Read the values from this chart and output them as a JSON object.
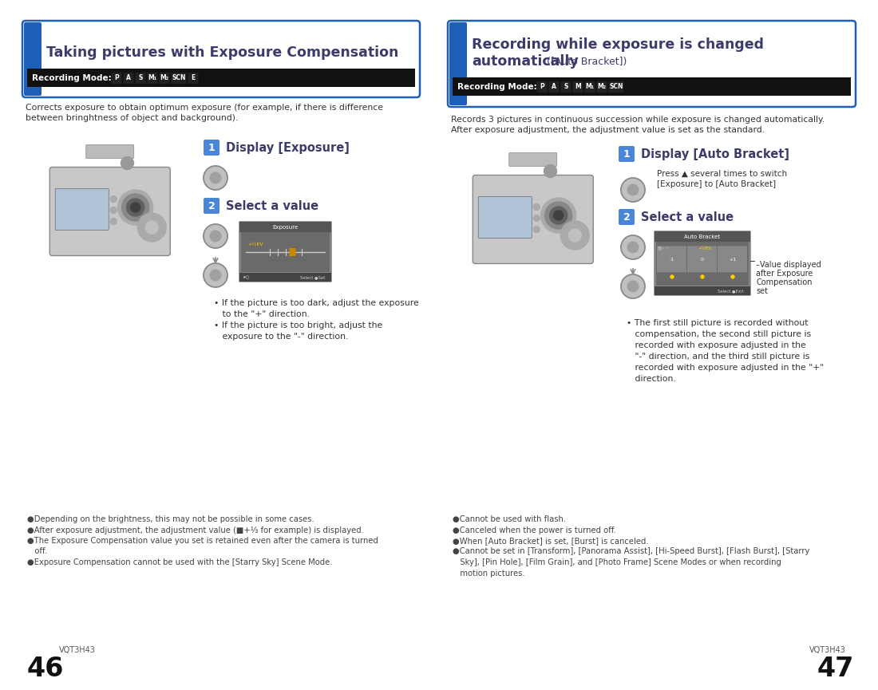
{
  "bg_color": "#ffffff",
  "left_panel": {
    "title": "Taking pictures with Exposure Compensation",
    "body_text": "Corrects exposure to obtain optimum exposure (for example, if there is difference\nbetween bringhtness of object and background).",
    "step1_label": "Display [Exposure]",
    "step2_label": "Select a value",
    "bullet1_line1": "• If the picture is too dark, adjust the exposure",
    "bullet1_line2": "   to the \"+\" direction.",
    "bullet2_line1": "• If the picture is too bright, adjust the",
    "bullet2_line2": "   exposure to the \"-\" direction.",
    "footer_bullets": [
      "●Depending on the brightness, this may not be possible in some cases.",
      "●After exposure adjustment, the adjustment value (■+⅓ for example) is displayed.",
      "●The Exposure Compensation value you set is retained even after the camera is turned",
      "   off.",
      "●Exposure Compensation cannot be used with the [Starry Sky] Scene Mode."
    ],
    "page_number": "46",
    "page_code": "VQT3H43"
  },
  "right_panel": {
    "title_line1": "Recording while exposure is changed",
    "title_line2_bold": "automatically",
    "title_line2_small": " ([Auto Bracket])",
    "body_text": "Records 3 pictures in continuous succession while exposure is changed automatically.\nAfter exposure adjustment, the adjustment value is set as the standard.",
    "step1_label": "Display [Auto Bracket]",
    "step1_sub_line1": "Press ▲ several times to switch",
    "step1_sub_line2": "[Exposure] to [Auto Bracket]",
    "step2_label": "Select a value",
    "step2_note_line1": "–Value displayed",
    "step2_note_line2": "after Exposure",
    "step2_note_line3": "Compensation",
    "step2_note_line4": "set",
    "bullet1_line1": "• The first still picture is recorded without",
    "bullet1_line2": "   compensation, the second still picture is",
    "bullet1_line3": "   recorded with exposure adjusted in the",
    "bullet1_line4": "   \"-\" direction, and the third still picture is",
    "bullet1_line5": "   recorded with exposure adjusted in the \"+\"",
    "bullet1_line6": "   direction.",
    "footer_bullets": [
      "●Cannot be used with flash.",
      "●Canceled when the power is turned off.",
      "●When [Auto Bracket] is set, [Burst] is canceled.",
      "●Cannot be set in [Transform], [Panorama Assist], [Hi-Speed Burst], [Flash Burst], [Starry",
      "   Sky], [Pin Hole], [Film Grain], and [Photo Frame] Scene Modes or when recording",
      "   motion pictures."
    ],
    "page_number": "47",
    "page_code": "VQT3H43"
  },
  "header_bg": "#1c5eb8",
  "border_color": "#1c5eb8",
  "step_badge_bg": "#4a86d8",
  "step_badge_text": "#ffffff",
  "title_text_color": "#3c3c6c",
  "body_text_color": "#333333",
  "footer_text_color": "#444444",
  "rec_mode_bg": "#111111",
  "rec_mode_text": "#ffffff",
  "icon_box_bg": "#222222",
  "icon_box_text": "#ffffff"
}
